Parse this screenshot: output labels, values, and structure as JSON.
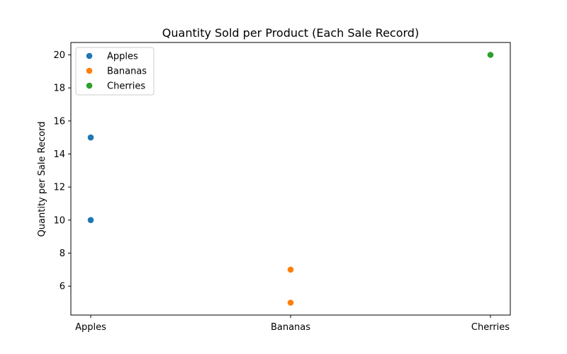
{
  "chart_data": {
    "type": "scatter",
    "title": "Quantity Sold per Product (Each Sale Record)",
    "xlabel": "",
    "ylabel": "Quantity per Sale Record",
    "categories": [
      "Apples",
      "Bananas",
      "Cherries"
    ],
    "ylim": [
      4.25,
      20.75
    ],
    "yticks": [
      6,
      8,
      10,
      12,
      14,
      16,
      18,
      20
    ],
    "grid": false,
    "legend_position": "top-left",
    "series": [
      {
        "name": "Apples",
        "color": "#1f77b4",
        "points": [
          {
            "x": "Apples",
            "y": 15
          },
          {
            "x": "Apples",
            "y": 10
          }
        ]
      },
      {
        "name": "Bananas",
        "color": "#ff7f0e",
        "points": [
          {
            "x": "Bananas",
            "y": 7
          },
          {
            "x": "Bananas",
            "y": 5
          }
        ]
      },
      {
        "name": "Cherries",
        "color": "#2ca02c",
        "points": [
          {
            "x": "Cherries",
            "y": 20
          }
        ]
      }
    ]
  }
}
